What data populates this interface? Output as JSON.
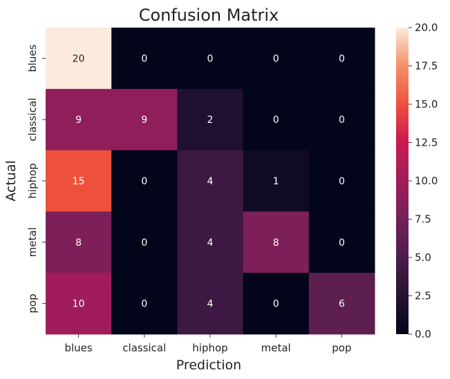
{
  "chart_data": {
    "type": "heatmap",
    "title": "Confusion Matrix",
    "xlabel": "Prediction",
    "ylabel": "Actual",
    "x_categories": [
      "blues",
      "classical",
      "hiphop",
      "metal",
      "pop"
    ],
    "y_categories": [
      "blues",
      "classical",
      "hiphop",
      "metal",
      "pop"
    ],
    "values": [
      [
        20,
        0,
        0,
        0,
        0
      ],
      [
        9,
        9,
        2,
        0,
        0
      ],
      [
        15,
        0,
        4,
        1,
        0
      ],
      [
        8,
        0,
        4,
        8,
        0
      ],
      [
        10,
        0,
        4,
        0,
        6
      ]
    ],
    "vmin": 0,
    "vmax": 20,
    "colormap": "rocket",
    "colorbar_ticks": [
      "0.0",
      "2.5",
      "5.0",
      "7.5",
      "10.0",
      "12.5",
      "15.0",
      "17.5",
      "20.0"
    ],
    "annotations": true
  }
}
